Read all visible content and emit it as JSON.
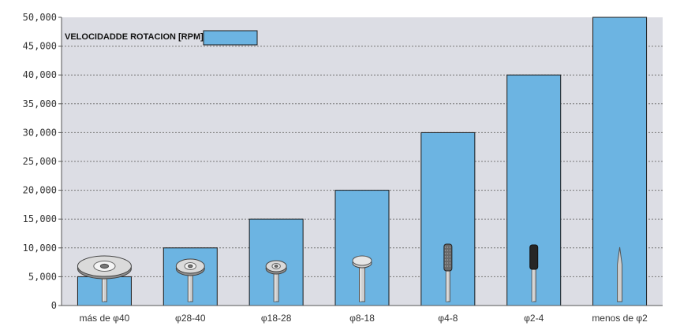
{
  "chart_data": {
    "type": "bar",
    "categories": [
      "más de  φ40",
      "φ28-40",
      "φ18-28",
      "φ8-18",
      "φ4-8",
      "φ2-4",
      "menos de  φ2"
    ],
    "values": [
      5000,
      10000,
      15000,
      20000,
      30000,
      40000,
      50000
    ],
    "ylim": [
      0,
      50000
    ],
    "yticks": [
      "0",
      "5,000",
      "10,000",
      "15,000",
      "20,000",
      "25,000",
      "30,000",
      "35,000",
      "40,000",
      "45,000",
      "50,000"
    ],
    "legend": {
      "label": "VELOCIDADDE ROTACION [RPM]",
      "position": "top-left"
    },
    "grid": true,
    "colors": {
      "bar": "#6cb4e2",
      "plot_bg": "#dcdde4",
      "bar_border": "#1a1a1a"
    },
    "tool_icons": [
      "large-disc-tool-icon",
      "medium-disc-tool-icon",
      "small-disc-tool-icon",
      "mushroom-point-icon",
      "diamond-burr-icon",
      "dark-burr-icon",
      "pointed-burr-icon"
    ]
  }
}
